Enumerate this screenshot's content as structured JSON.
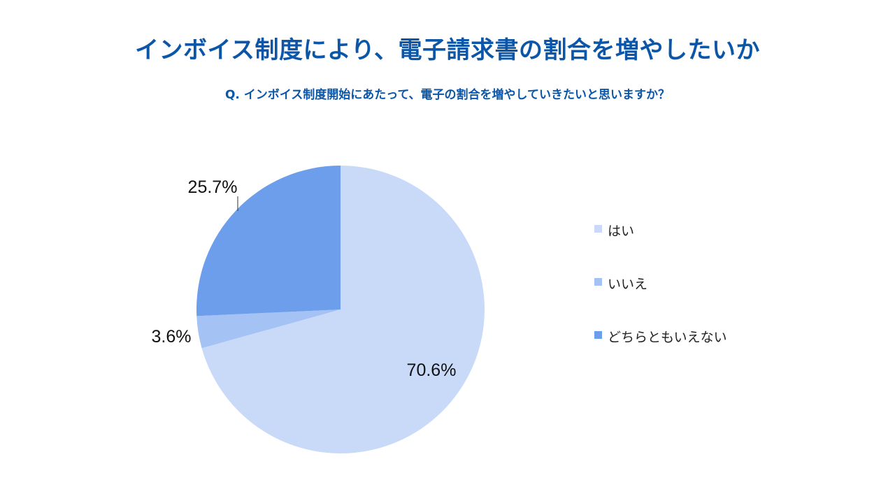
{
  "header": {
    "title": "インボイス制度により、電子請求書の割合を増やしたいか",
    "subtitle": "Q. インボイス制度開始にあたって、電子の割合を増やしていきたいと思いますか？"
  },
  "chart_data": {
    "type": "pie",
    "categories": [
      "はい",
      "いいえ",
      "どちらともいえない"
    ],
    "values": [
      70.6,
      3.6,
      25.7
    ],
    "labels": [
      "70.6%",
      "3.6%",
      "25.7%"
    ],
    "colors": [
      "#c9daf8",
      "#a4c2f4",
      "#6d9eeb"
    ],
    "start_angle": "12 o'clock",
    "direction": "clockwise",
    "legend_position": "right"
  }
}
